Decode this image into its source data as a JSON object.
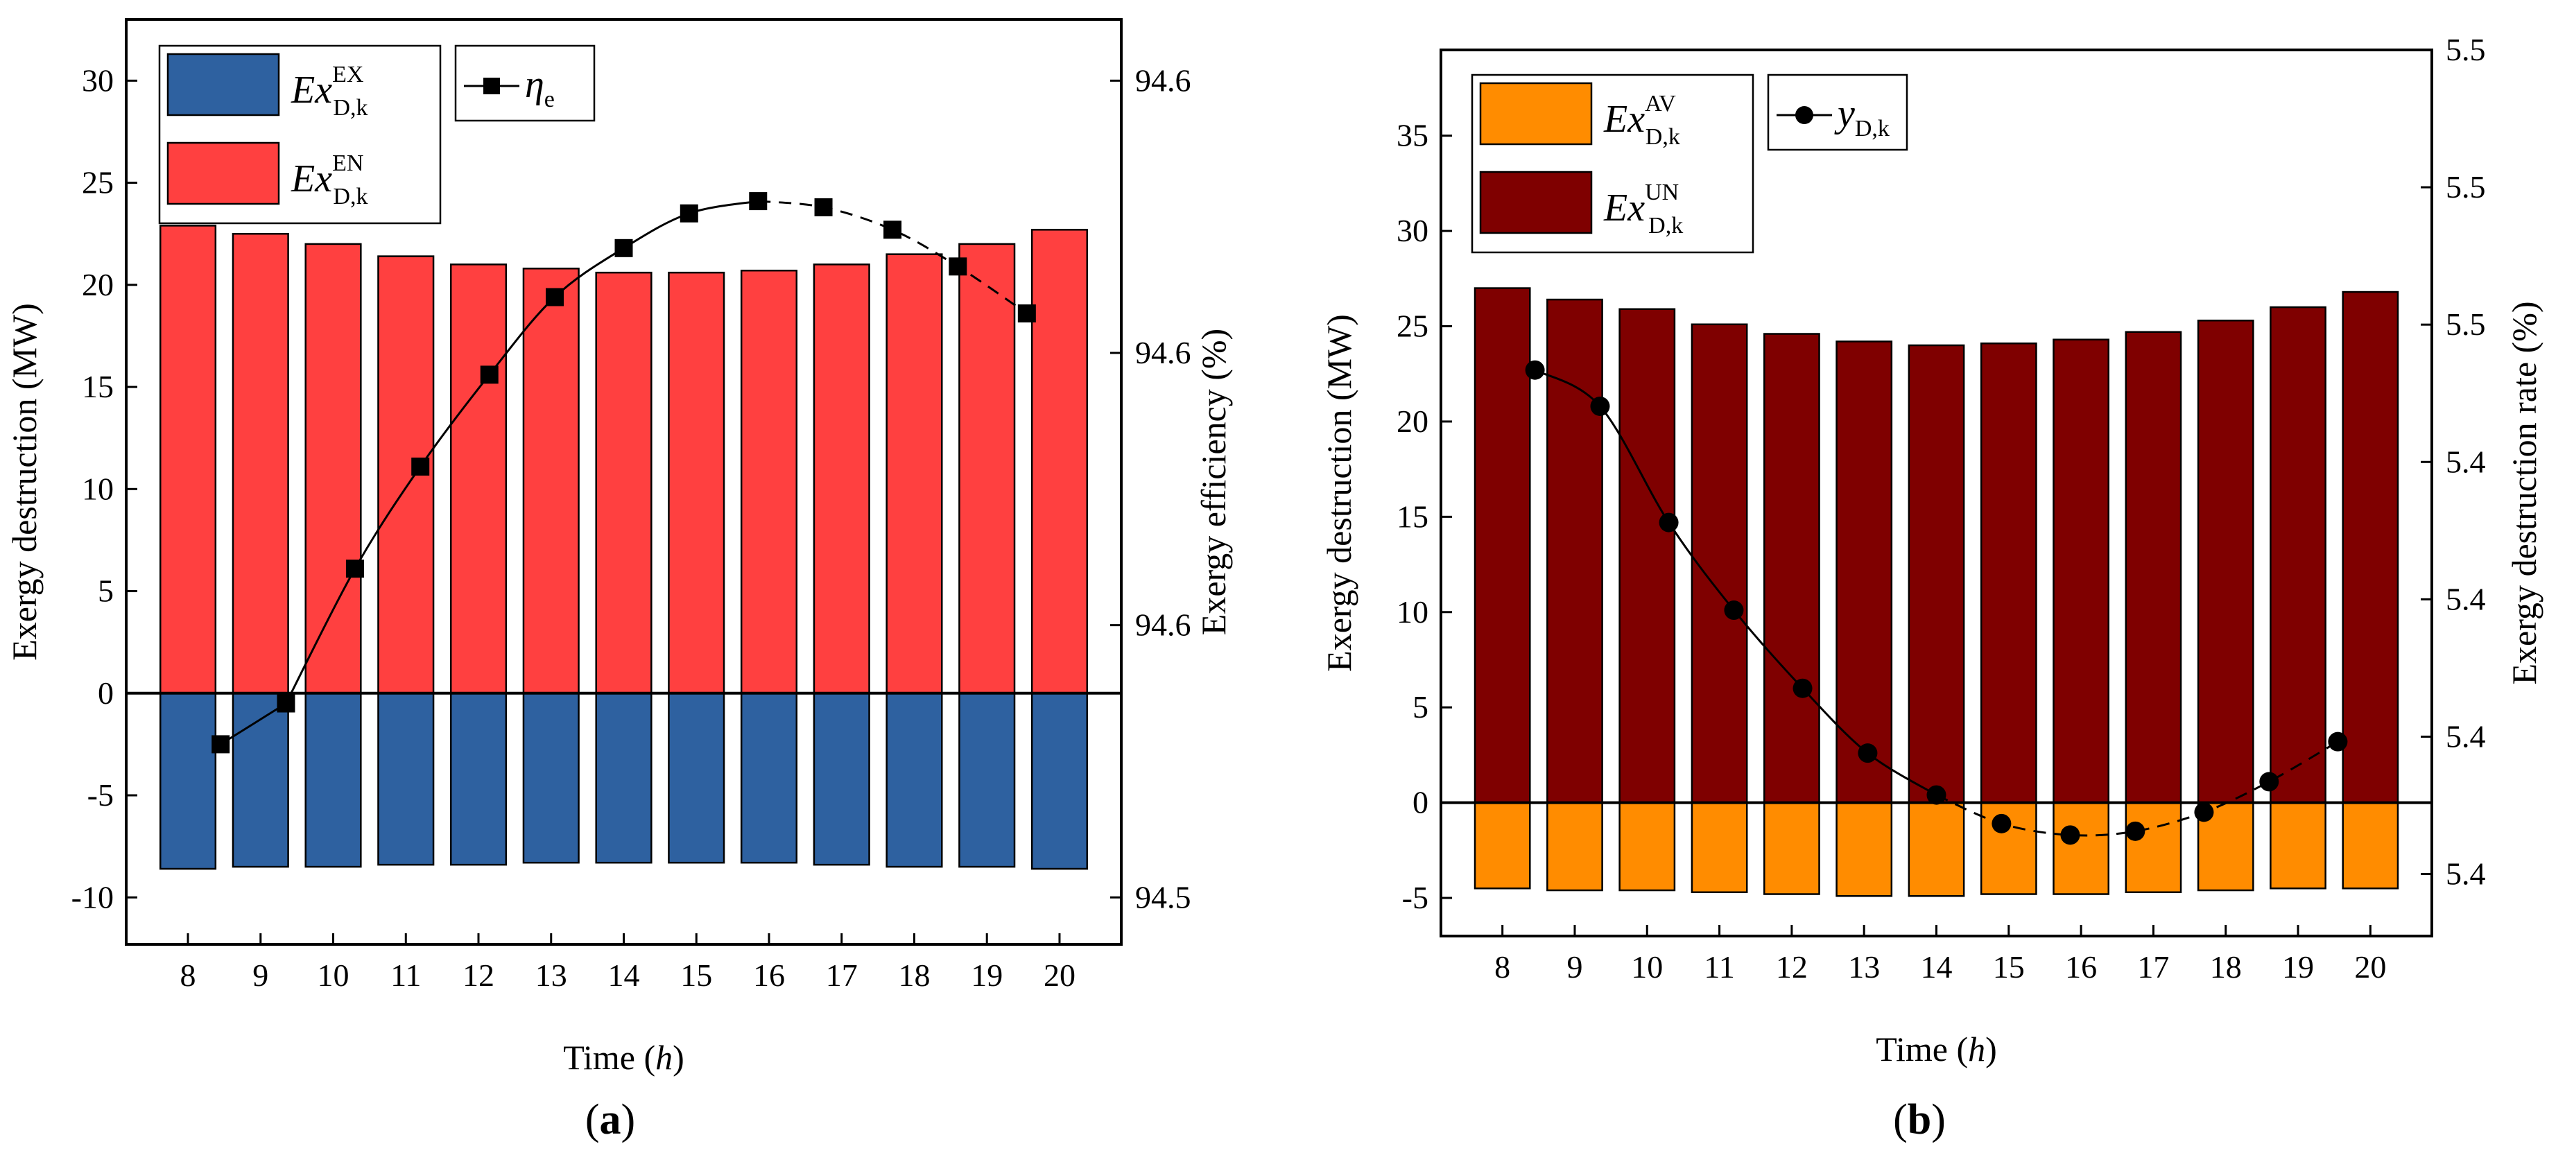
{
  "chart_data": [
    {
      "type": "bar",
      "panel_label": "a",
      "categories": [
        "8",
        "9",
        "10",
        "11",
        "12",
        "13",
        "14",
        "15",
        "16",
        "17",
        "18",
        "19",
        "20"
      ],
      "xlabel_prefix": "Time (",
      "xlabel_var": "h",
      "xlabel_suffix": ")",
      "ylabel": "Exergy destruction (MW)",
      "y2label": "Exergy efficiency (%)",
      "ylim": [
        -12.3,
        33.0
      ],
      "yticks": [
        -10,
        -5,
        0,
        5,
        10,
        15,
        20,
        25,
        30
      ],
      "y2ticks": [
        "94.5",
        "94.6",
        "94.6",
        "94.6"
      ],
      "series": [
        {
          "name": "Ex D,k EN",
          "legend_main": "Ex",
          "legend_sub": "D,k",
          "legend_sup": "EN",
          "color": "#FF4040",
          "values": [
            22.9,
            22.5,
            22.0,
            21.4,
            21.0,
            20.8,
            20.6,
            20.6,
            20.7,
            21.0,
            21.5,
            22.0,
            22.7
          ]
        },
        {
          "name": "Ex D,k EX",
          "legend_main": "Ex",
          "legend_sub": "D,k",
          "legend_sup": "EX",
          "color": "#2E61A0",
          "values": [
            -8.6,
            -8.5,
            -8.5,
            -8.4,
            -8.4,
            -8.3,
            -8.3,
            -8.3,
            -8.3,
            -8.4,
            -8.5,
            -8.5,
            -8.6
          ]
        }
      ],
      "line": {
        "name": "eta e",
        "legend_main": "η",
        "legend_sub": "e",
        "marker": "square",
        "x": [
          8.45,
          9.35,
          10.3,
          11.2,
          12.15,
          13.05,
          14.0,
          14.9,
          15.85,
          16.75,
          17.7,
          18.6,
          19.55
        ],
        "values_left_axis": [
          -2.5,
          -0.5,
          6.1,
          11.1,
          15.6,
          19.4,
          21.8,
          23.5,
          24.1,
          23.8,
          22.7,
          20.9,
          18.6
        ]
      }
    },
    {
      "type": "bar",
      "panel_label": "b",
      "categories": [
        "8",
        "9",
        "10",
        "11",
        "12",
        "13",
        "14",
        "15",
        "16",
        "17",
        "18",
        "19",
        "20"
      ],
      "xlabel_prefix": "Time (",
      "xlabel_var": "h",
      "xlabel_suffix": ")",
      "ylabel": "Exergy destruction (MW)",
      "y2label": "Exergy destruction rate (%)",
      "ylim": [
        -7.0,
        39.5
      ],
      "yticks": [
        -5,
        0,
        5,
        10,
        15,
        20,
        25,
        30,
        35
      ],
      "y2ticks": [
        "5.4",
        "5.4",
        "5.4",
        "5.4",
        "5.5",
        "5.5",
        "5.5"
      ],
      "series": [
        {
          "name": "Ex D,k UN",
          "legend_main": "Ex",
          "legend_sub": "D,k",
          "legend_sup": "UN",
          "color": "#7F0000",
          "values": [
            27.0,
            26.4,
            25.9,
            25.1,
            24.6,
            24.2,
            24.0,
            24.1,
            24.3,
            24.7,
            25.3,
            26.0,
            26.8
          ]
        },
        {
          "name": "Ex D,k AV",
          "legend_main": "Ex",
          "legend_sub": "D,k",
          "legend_sup": "AV",
          "color": "#FF8C00",
          "values": [
            -4.5,
            -4.6,
            -4.6,
            -4.7,
            -4.8,
            -4.9,
            -4.9,
            -4.8,
            -4.8,
            -4.7,
            -4.6,
            -4.5,
            -4.5
          ]
        }
      ],
      "line": {
        "name": "y D,k",
        "legend_main": "y",
        "legend_sub": "D,k",
        "marker": "circle",
        "x": [
          8.45,
          9.35,
          10.3,
          11.2,
          12.15,
          13.05,
          14.0,
          14.9,
          15.85,
          16.75,
          17.7,
          18.6,
          19.55
        ],
        "values_left_axis": [
          22.7,
          20.8,
          14.7,
          10.1,
          6.0,
          2.6,
          0.4,
          -1.1,
          -1.7,
          -1.5,
          -0.5,
          1.1,
          3.2
        ]
      }
    }
  ]
}
